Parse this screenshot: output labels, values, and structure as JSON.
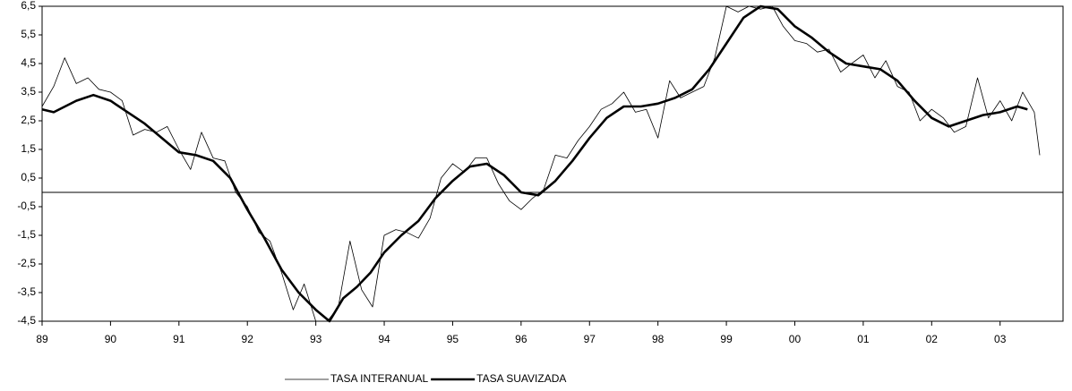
{
  "chart_data": {
    "type": "line",
    "xlim": [
      1989,
      2003.92
    ],
    "ylim": [
      -4.5,
      6.5
    ],
    "xticks": [
      {
        "value": 1989,
        "label": "89"
      },
      {
        "value": 1990,
        "label": "90"
      },
      {
        "value": 1991,
        "label": "91"
      },
      {
        "value": 1992,
        "label": "92"
      },
      {
        "value": 1993,
        "label": "93"
      },
      {
        "value": 1994,
        "label": "94"
      },
      {
        "value": 1995,
        "label": "95"
      },
      {
        "value": 1996,
        "label": "96"
      },
      {
        "value": 1997,
        "label": "97"
      },
      {
        "value": 1998,
        "label": "98"
      },
      {
        "value": 1999,
        "label": "99"
      },
      {
        "value": 2000,
        "label": "00"
      },
      {
        "value": 2001,
        "label": "01"
      },
      {
        "value": 2002,
        "label": "02"
      },
      {
        "value": 2003,
        "label": "03"
      }
    ],
    "yticks": [
      {
        "value": 6.5,
        "label": "6,5"
      },
      {
        "value": 5.5,
        "label": "5,5"
      },
      {
        "value": 4.5,
        "label": "4,5"
      },
      {
        "value": 3.5,
        "label": "3,5"
      },
      {
        "value": 2.5,
        "label": "2,5"
      },
      {
        "value": 1.5,
        "label": "1,5"
      },
      {
        "value": 0.5,
        "label": "0,5"
      },
      {
        "value": -0.5,
        "label": "-0,5"
      },
      {
        "value": -1.5,
        "label": "-1,5"
      },
      {
        "value": -2.5,
        "label": "-2,5"
      },
      {
        "value": -3.5,
        "label": "-3,5"
      },
      {
        "value": -4.5,
        "label": "-4,5"
      }
    ],
    "series": [
      {
        "name": "TASA INTERANUAL",
        "color": "#000000",
        "x": [
          1989.0,
          1989.17,
          1989.33,
          1989.5,
          1989.67,
          1989.83,
          1990.0,
          1990.17,
          1990.33,
          1990.5,
          1990.67,
          1990.83,
          1991.0,
          1991.17,
          1991.33,
          1991.5,
          1991.67,
          1991.83,
          1992.0,
          1992.17,
          1992.33,
          1992.5,
          1992.67,
          1992.83,
          1993.0,
          1993.17,
          1993.33,
          1993.5,
          1993.67,
          1993.83,
          1994.0,
          1994.17,
          1994.33,
          1994.5,
          1994.67,
          1994.83,
          1995.0,
          1995.17,
          1995.33,
          1995.5,
          1995.67,
          1995.83,
          1996.0,
          1996.17,
          1996.33,
          1996.5,
          1996.67,
          1996.83,
          1997.0,
          1997.17,
          1997.33,
          1997.5,
          1997.67,
          1997.83,
          1998.0,
          1998.17,
          1998.33,
          1998.5,
          1998.67,
          1998.83,
          1999.0,
          1999.17,
          1999.33,
          1999.5,
          1999.67,
          1999.83,
          2000.0,
          2000.17,
          2000.33,
          2000.5,
          2000.67,
          2000.83,
          2001.0,
          2001.17,
          2001.33,
          2001.5,
          2001.67,
          2001.83,
          2002.0,
          2002.17,
          2002.33,
          2002.5,
          2002.67,
          2002.83,
          2003.0,
          2003.17,
          2003.33,
          2003.5,
          2003.58
        ],
        "values": [
          3.0,
          3.7,
          4.7,
          3.8,
          4.0,
          3.6,
          3.5,
          3.2,
          2.0,
          2.2,
          2.1,
          2.3,
          1.5,
          0.8,
          2.1,
          1.2,
          1.1,
          0.0,
          -0.5,
          -1.4,
          -1.7,
          -2.8,
          -4.1,
          -3.2,
          -4.5,
          -4.5,
          -4.0,
          -1.7,
          -3.4,
          -4.0,
          -1.5,
          -1.3,
          -1.4,
          -1.6,
          -0.9,
          0.5,
          1.0,
          0.7,
          1.2,
          1.2,
          0.3,
          -0.3,
          -0.6,
          -0.2,
          0.1,
          1.3,
          1.2,
          1.8,
          2.3,
          2.9,
          3.1,
          3.5,
          2.8,
          2.9,
          1.9,
          3.9,
          3.3,
          3.5,
          3.7,
          4.7,
          6.5,
          6.3,
          6.5,
          6.4,
          6.5,
          5.8,
          5.3,
          5.2,
          4.9,
          5.0,
          4.2,
          4.5,
          4.8,
          4.0,
          4.6,
          3.7,
          3.5,
          2.5,
          2.9,
          2.6,
          2.1,
          2.3,
          4.0,
          2.6,
          3.2,
          2.5,
          3.5,
          2.8,
          1.3
        ]
      },
      {
        "name": "TASA SUAVIZADA",
        "color": "#000000",
        "x": [
          1989.0,
          1989.17,
          1989.5,
          1989.75,
          1990.0,
          1990.25,
          1990.5,
          1990.75,
          1991.0,
          1991.25,
          1991.5,
          1991.75,
          1992.0,
          1992.25,
          1992.5,
          1992.75,
          1993.0,
          1993.2,
          1993.4,
          1993.6,
          1993.8,
          1994.0,
          1994.25,
          1994.5,
          1994.75,
          1995.0,
          1995.25,
          1995.5,
          1995.75,
          1996.0,
          1996.25,
          1996.5,
          1996.75,
          1997.0,
          1997.25,
          1997.5,
          1997.75,
          1998.0,
          1998.25,
          1998.5,
          1998.75,
          1999.0,
          1999.25,
          1999.5,
          1999.75,
          2000.0,
          2000.25,
          2000.5,
          2000.75,
          2001.0,
          2001.25,
          2001.5,
          2001.75,
          2002.0,
          2002.25,
          2002.5,
          2002.75,
          2003.0,
          2003.25,
          2003.4
        ],
        "values": [
          2.9,
          2.8,
          3.2,
          3.4,
          3.2,
          2.8,
          2.4,
          1.9,
          1.4,
          1.3,
          1.1,
          0.5,
          -0.6,
          -1.6,
          -2.7,
          -3.5,
          -4.1,
          -4.5,
          -3.7,
          -3.3,
          -2.8,
          -2.1,
          -1.5,
          -1.0,
          -0.2,
          0.4,
          0.9,
          1.0,
          0.6,
          0.0,
          -0.1,
          0.4,
          1.1,
          1.9,
          2.6,
          3.0,
          3.0,
          3.1,
          3.3,
          3.6,
          4.3,
          5.2,
          6.1,
          6.5,
          6.4,
          5.8,
          5.4,
          4.9,
          4.5,
          4.4,
          4.3,
          3.9,
          3.2,
          2.6,
          2.3,
          2.5,
          2.7,
          2.8,
          3.0,
          2.9
        ]
      }
    ]
  }
}
